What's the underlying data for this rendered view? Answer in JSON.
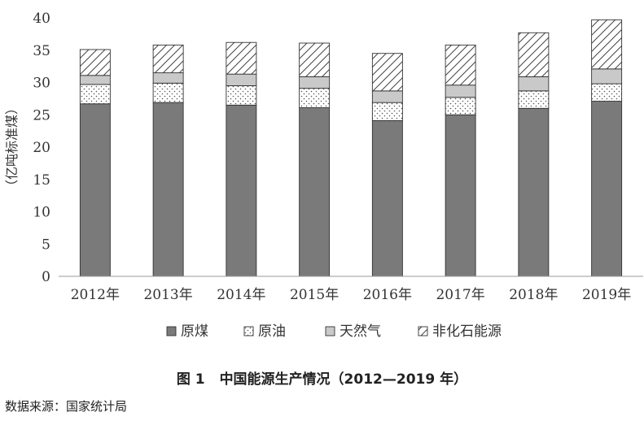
{
  "chart_data": {
    "type": "bar",
    "stacked": true,
    "categories": [
      "2012年",
      "2013年",
      "2014年",
      "2015年",
      "2016年",
      "2017年",
      "2018年",
      "2019年"
    ],
    "series": [
      {
        "name": "原煤",
        "values": [
          26.7,
          26.9,
          26.5,
          26.1,
          24.1,
          25.0,
          26.0,
          27.1
        ]
      },
      {
        "name": "原油",
        "values": [
          3.0,
          3.0,
          3.0,
          3.0,
          2.8,
          2.7,
          2.7,
          2.7
        ]
      },
      {
        "name": "天然气",
        "values": [
          1.4,
          1.6,
          1.8,
          1.8,
          1.8,
          1.9,
          2.2,
          2.3
        ]
      },
      {
        "name": "非化石能源",
        "values": [
          4.0,
          4.3,
          4.9,
          5.2,
          5.8,
          6.2,
          6.8,
          7.6
        ]
      }
    ],
    "ylabel": "（亿吨标准煤）",
    "ylim": [
      0,
      40
    ],
    "yticks": [
      0,
      5,
      10,
      15,
      20,
      25,
      30,
      35,
      40
    ],
    "grid": false,
    "legend_position": "bottom",
    "colors": {
      "原煤": "#7a7a7a",
      "原油": "#ffffff",
      "天然气": "#c9c9c9",
      "非化石能源": "#ffffff",
      "edge": "#333333"
    }
  },
  "figure": {
    "label": "图 1",
    "title": "中国能源生产情况（2012—2019 年）"
  },
  "source": "数据来源：国家统计局"
}
